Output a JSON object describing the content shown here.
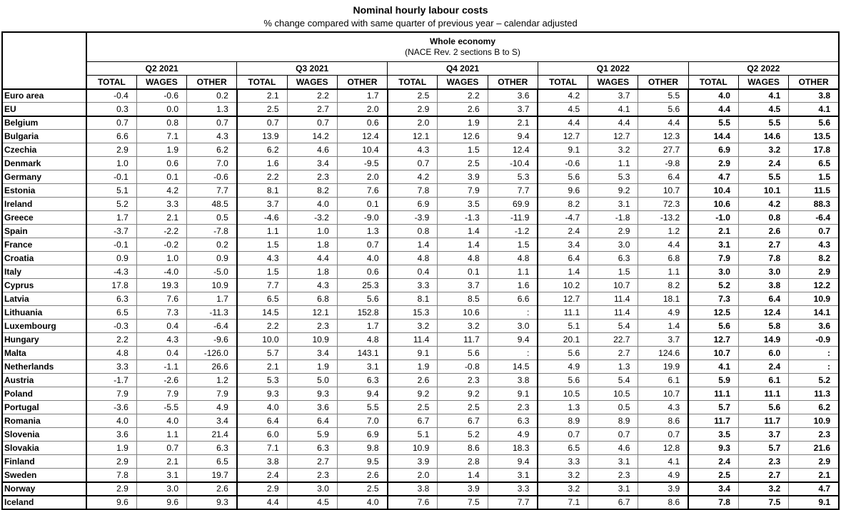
{
  "page": {
    "title": "Nominal hourly labour costs",
    "subtitle": "% change compared with same quarter of previous year – calendar adjusted"
  },
  "colors": {
    "background": "#ffffff",
    "text": "#000000",
    "border_thin": "#808080",
    "border_thick": "#000000"
  },
  "chart_data": {
    "type": "table",
    "title": "Nominal hourly labour costs",
    "subtitle": "% change compared with same quarter of previous year – calendar adjusted",
    "group_header": {
      "line1": "Whole economy",
      "line2": "(NACE Rev. 2 sections B to S)"
    },
    "quarters": [
      "Q2 2021",
      "Q3 2021",
      "Q4 2021",
      "Q1 2022",
      "Q2 2022"
    ],
    "subcolumns": [
      "TOTAL",
      "WAGES",
      "OTHER"
    ],
    "bold_quarter": "Q2 2022",
    "missing_value_symbol": ":",
    "thick_border_after": [
      "EU",
      "Sweden",
      "Norway"
    ],
    "rows": [
      {
        "country": "Euro area",
        "values": [
          "-0.4",
          "-0.6",
          "0.2",
          "2.1",
          "2.2",
          "1.7",
          "2.5",
          "2.2",
          "3.6",
          "4.2",
          "3.7",
          "5.5",
          "4.0",
          "4.1",
          "3.8"
        ]
      },
      {
        "country": "EU",
        "values": [
          "0.3",
          "0.0",
          "1.3",
          "2.5",
          "2.7",
          "2.0",
          "2.9",
          "2.6",
          "3.7",
          "4.5",
          "4.1",
          "5.6",
          "4.4",
          "4.5",
          "4.1"
        ]
      },
      {
        "country": "Belgium",
        "values": [
          "0.7",
          "0.8",
          "0.7",
          "0.7",
          "0.7",
          "0.6",
          "2.0",
          "1.9",
          "2.1",
          "4.4",
          "4.4",
          "4.4",
          "5.5",
          "5.5",
          "5.6"
        ]
      },
      {
        "country": "Bulgaria",
        "values": [
          "6.6",
          "7.1",
          "4.3",
          "13.9",
          "14.2",
          "12.4",
          "12.1",
          "12.6",
          "9.4",
          "12.7",
          "12.7",
          "12.3",
          "14.4",
          "14.6",
          "13.5"
        ]
      },
      {
        "country": "Czechia",
        "values": [
          "2.9",
          "1.9",
          "6.2",
          "6.2",
          "4.6",
          "10.4",
          "4.3",
          "1.5",
          "12.4",
          "9.1",
          "3.2",
          "27.7",
          "6.9",
          "3.2",
          "17.8"
        ]
      },
      {
        "country": "Denmark",
        "values": [
          "1.0",
          "0.6",
          "7.0",
          "1.6",
          "3.4",
          "-9.5",
          "0.7",
          "2.5",
          "-10.4",
          "-0.6",
          "1.1",
          "-9.8",
          "2.9",
          "2.4",
          "6.5"
        ]
      },
      {
        "country": "Germany",
        "values": [
          "-0.1",
          "0.1",
          "-0.6",
          "2.2",
          "2.3",
          "2.0",
          "4.2",
          "3.9",
          "5.3",
          "5.6",
          "5.3",
          "6.4",
          "4.7",
          "5.5",
          "1.5"
        ]
      },
      {
        "country": "Estonia",
        "values": [
          "5.1",
          "4.2",
          "7.7",
          "8.1",
          "8.2",
          "7.6",
          "7.8",
          "7.9",
          "7.7",
          "9.6",
          "9.2",
          "10.7",
          "10.4",
          "10.1",
          "11.5"
        ]
      },
      {
        "country": "Ireland",
        "values": [
          "5.2",
          "3.3",
          "48.5",
          "3.7",
          "4.0",
          "0.1",
          "6.9",
          "3.5",
          "69.9",
          "8.2",
          "3.1",
          "72.3",
          "10.6",
          "4.2",
          "88.3"
        ]
      },
      {
        "country": "Greece",
        "values": [
          "1.7",
          "2.1",
          "0.5",
          "-4.6",
          "-3.2",
          "-9.0",
          "-3.9",
          "-1.3",
          "-11.9",
          "-4.7",
          "-1.8",
          "-13.2",
          "-1.0",
          "0.8",
          "-6.4"
        ]
      },
      {
        "country": "Spain",
        "values": [
          "-3.7",
          "-2.2",
          "-7.8",
          "1.1",
          "1.0",
          "1.3",
          "0.8",
          "1.4",
          "-1.2",
          "2.4",
          "2.9",
          "1.2",
          "2.1",
          "2.6",
          "0.7"
        ]
      },
      {
        "country": "France",
        "values": [
          "-0.1",
          "-0.2",
          "0.2",
          "1.5",
          "1.8",
          "0.7",
          "1.4",
          "1.4",
          "1.5",
          "3.4",
          "3.0",
          "4.4",
          "3.1",
          "2.7",
          "4.3"
        ]
      },
      {
        "country": "Croatia",
        "values": [
          "0.9",
          "1.0",
          "0.9",
          "4.3",
          "4.4",
          "4.0",
          "4.8",
          "4.8",
          "4.8",
          "6.4",
          "6.3",
          "6.8",
          "7.9",
          "7.8",
          "8.2"
        ]
      },
      {
        "country": "Italy",
        "values": [
          "-4.3",
          "-4.0",
          "-5.0",
          "1.5",
          "1.8",
          "0.6",
          "0.4",
          "0.1",
          "1.1",
          "1.4",
          "1.5",
          "1.1",
          "3.0",
          "3.0",
          "2.9"
        ]
      },
      {
        "country": "Cyprus",
        "values": [
          "17.8",
          "19.3",
          "10.9",
          "7.7",
          "4.3",
          "25.3",
          "3.3",
          "3.7",
          "1.6",
          "10.2",
          "10.7",
          "8.2",
          "5.2",
          "3.8",
          "12.2"
        ]
      },
      {
        "country": "Latvia",
        "values": [
          "6.3",
          "7.6",
          "1.7",
          "6.5",
          "6.8",
          "5.6",
          "8.1",
          "8.5",
          "6.6",
          "12.7",
          "11.4",
          "18.1",
          "7.3",
          "6.4",
          "10.9"
        ]
      },
      {
        "country": "Lithuania",
        "values": [
          "6.5",
          "7.3",
          "-11.3",
          "14.5",
          "12.1",
          "152.8",
          "15.3",
          "10.6",
          ":",
          "11.1",
          "11.4",
          "4.9",
          "12.5",
          "12.4",
          "14.1"
        ]
      },
      {
        "country": "Luxembourg",
        "values": [
          "-0.3",
          "0.4",
          "-6.4",
          "2.2",
          "2.3",
          "1.7",
          "3.2",
          "3.2",
          "3.0",
          "5.1",
          "5.4",
          "1.4",
          "5.6",
          "5.8",
          "3.6"
        ]
      },
      {
        "country": "Hungary",
        "values": [
          "2.2",
          "4.3",
          "-9.6",
          "10.0",
          "10.9",
          "4.8",
          "11.4",
          "11.7",
          "9.4",
          "20.1",
          "22.7",
          "3.7",
          "12.7",
          "14.9",
          "-0.9"
        ]
      },
      {
        "country": "Malta",
        "values": [
          "4.8",
          "0.4",
          "-126.0",
          "5.7",
          "3.4",
          "143.1",
          "9.1",
          "5.6",
          ":",
          "5.6",
          "2.7",
          "124.6",
          "10.7",
          "6.0",
          ":"
        ]
      },
      {
        "country": "Netherlands",
        "values": [
          "3.3",
          "-1.1",
          "26.6",
          "2.1",
          "1.9",
          "3.1",
          "1.9",
          "-0.8",
          "14.5",
          "4.9",
          "1.3",
          "19.9",
          "4.1",
          "2.4",
          ":"
        ]
      },
      {
        "country": "Austria",
        "values": [
          "-1.7",
          "-2.6",
          "1.2",
          "5.3",
          "5.0",
          "6.3",
          "2.6",
          "2.3",
          "3.8",
          "5.6",
          "5.4",
          "6.1",
          "5.9",
          "6.1",
          "5.2"
        ]
      },
      {
        "country": "Poland",
        "values": [
          "7.9",
          "7.9",
          "7.9",
          "9.3",
          "9.3",
          "9.4",
          "9.2",
          "9.2",
          "9.1",
          "10.5",
          "10.5",
          "10.7",
          "11.1",
          "11.1",
          "11.3"
        ]
      },
      {
        "country": "Portugal",
        "values": [
          "-3.6",
          "-5.5",
          "4.9",
          "4.0",
          "3.6",
          "5.5",
          "2.5",
          "2.5",
          "2.3",
          "1.3",
          "0.5",
          "4.3",
          "5.7",
          "5.6",
          "6.2"
        ]
      },
      {
        "country": "Romania",
        "values": [
          "4.0",
          "4.0",
          "3.4",
          "6.4",
          "6.4",
          "7.0",
          "6.7",
          "6.7",
          "6.3",
          "8.9",
          "8.9",
          "8.6",
          "11.7",
          "11.7",
          "10.9"
        ]
      },
      {
        "country": "Slovenia",
        "values": [
          "3.6",
          "1.1",
          "21.4",
          "6.0",
          "5.9",
          "6.9",
          "5.1",
          "5.2",
          "4.9",
          "0.7",
          "0.7",
          "0.7",
          "3.5",
          "3.7",
          "2.3"
        ]
      },
      {
        "country": "Slovakia",
        "values": [
          "1.9",
          "0.7",
          "6.3",
          "7.1",
          "6.3",
          "9.8",
          "10.9",
          "8.6",
          "18.3",
          "6.5",
          "4.6",
          "12.8",
          "9.3",
          "5.7",
          "21.6"
        ]
      },
      {
        "country": "Finland",
        "values": [
          "2.9",
          "2.1",
          "6.5",
          "3.8",
          "2.7",
          "9.5",
          "3.9",
          "2.8",
          "9.4",
          "3.3",
          "3.1",
          "4.1",
          "2.4",
          "2.3",
          "2.9"
        ]
      },
      {
        "country": "Sweden",
        "values": [
          "7.8",
          "3.1",
          "19.7",
          "2.4",
          "2.3",
          "2.6",
          "2.0",
          "1.4",
          "3.1",
          "3.2",
          "2.3",
          "4.9",
          "2.5",
          "2.7",
          "2.1"
        ]
      },
      {
        "country": "Norway",
        "values": [
          "2.9",
          "3.0",
          "2.6",
          "2.9",
          "3.0",
          "2.5",
          "3.8",
          "3.9",
          "3.3",
          "3.2",
          "3.1",
          "3.9",
          "3.4",
          "3.2",
          "4.7"
        ]
      },
      {
        "country": "Iceland",
        "values": [
          "9.6",
          "9.6",
          "9.3",
          "4.4",
          "4.5",
          "4.0",
          "7.6",
          "7.5",
          "7.7",
          "7.1",
          "6.7",
          "8.6",
          "7.8",
          "7.5",
          "9.1"
        ]
      }
    ]
  }
}
